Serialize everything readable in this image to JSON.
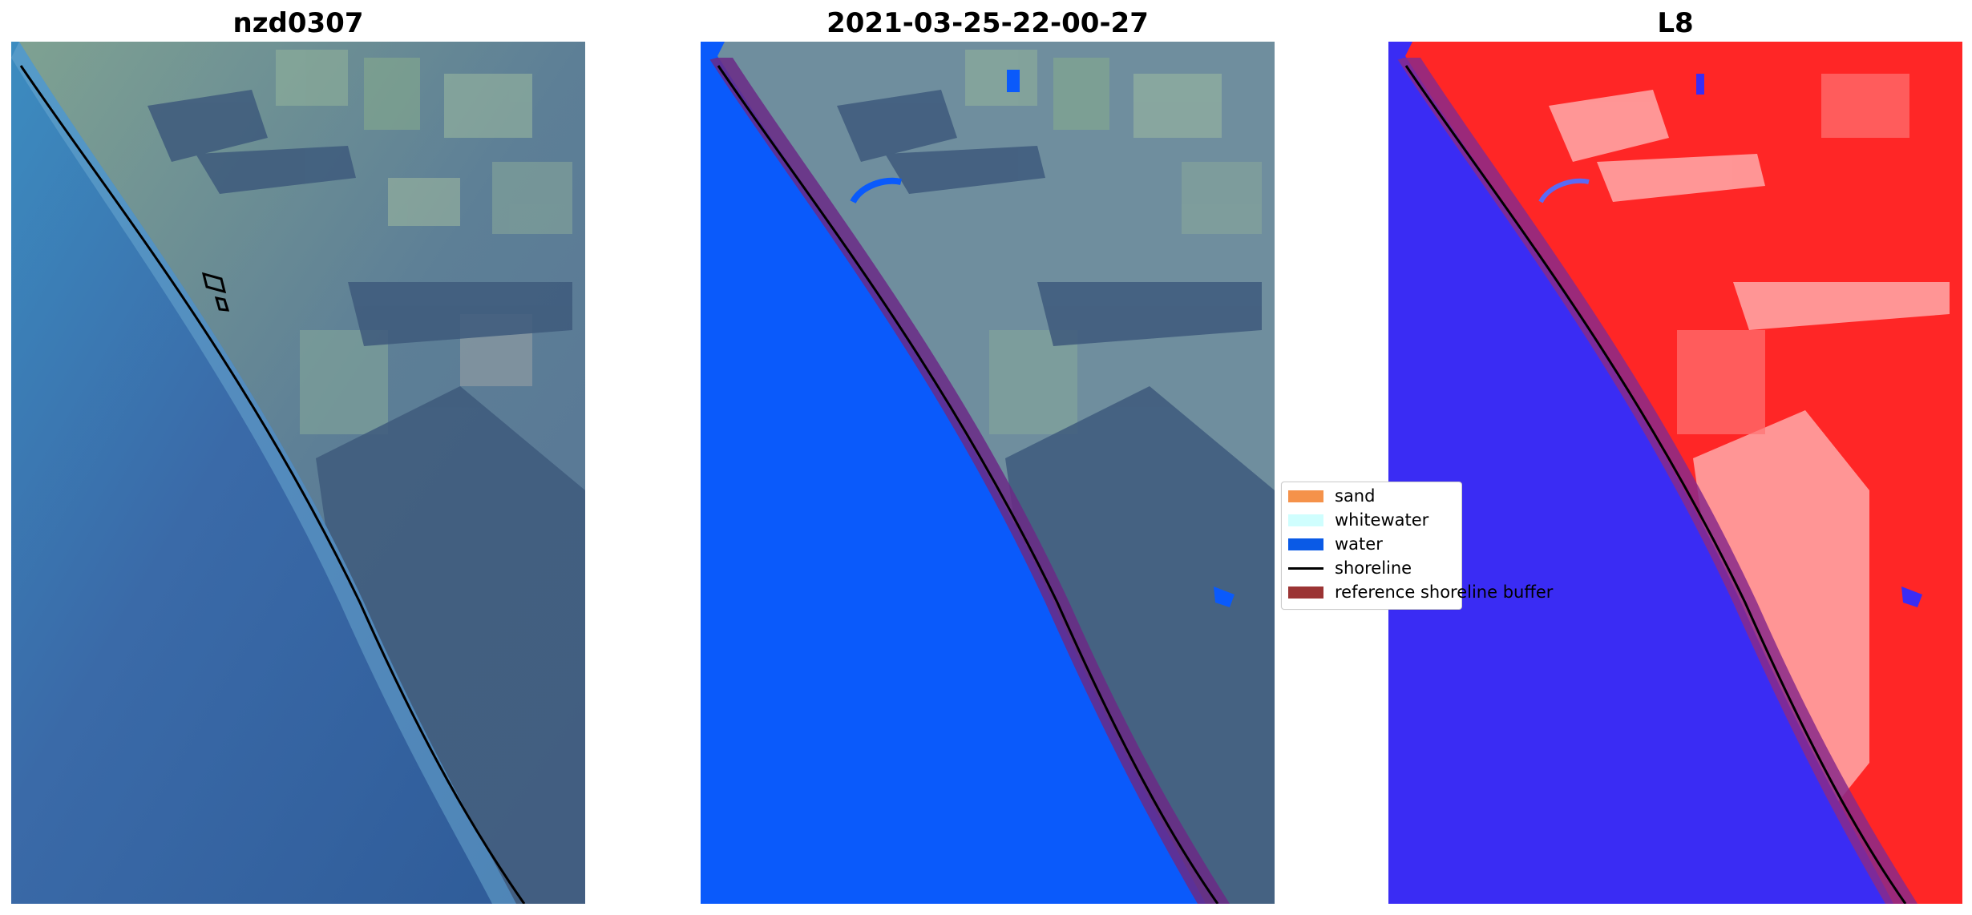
{
  "panels": [
    {
      "title": "nzd0307"
    },
    {
      "title": "2021-03-25-22-00-27"
    },
    {
      "title": "L8"
    }
  ],
  "legend": {
    "items": [
      {
        "label": "sand",
        "color": "#f5924a",
        "kind": "patch"
      },
      {
        "label": "whitewater",
        "color": "#cffefe",
        "kind": "patch"
      },
      {
        "label": "water",
        "color": "#0a5ae6",
        "kind": "patch"
      },
      {
        "label": "shoreline",
        "color": "#000000",
        "kind": "line"
      },
      {
        "label": "reference shoreline buffer",
        "color": "#9b3434",
        "kind": "patch"
      }
    ]
  },
  "colors": {
    "ocean_rgb": "#3a66a6",
    "land_rgb": "#6f8f9c",
    "water_class": "#0a5af9",
    "buffer": "#6b2a86",
    "index_land": "#ff2020",
    "index_water": "#3a2cf2"
  }
}
